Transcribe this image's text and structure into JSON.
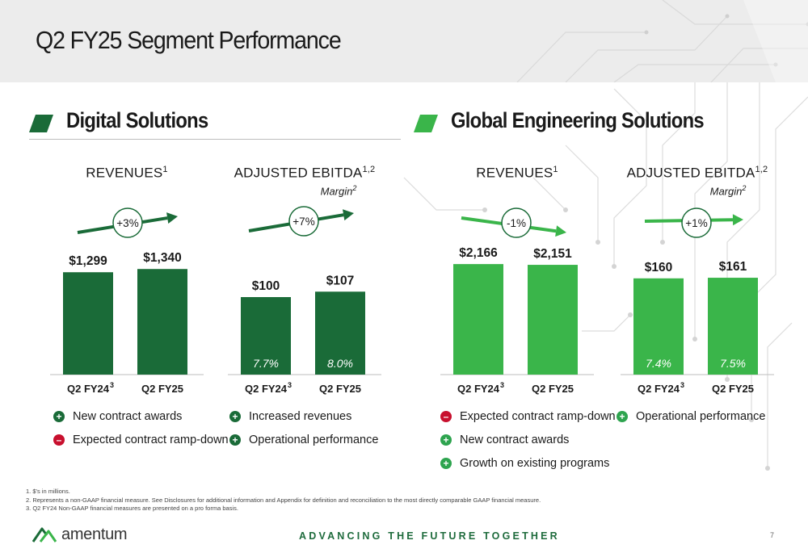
{
  "slide": {
    "title": "Q2 FY25 Segment Performance",
    "page_number": "7",
    "tagline": "ADVANCING THE FUTURE TOGETHER",
    "logo_text": "amentum"
  },
  "colors": {
    "dark_green": "#1a6b38",
    "light_green": "#3ab54a",
    "negative_red": "#c8102e"
  },
  "sections": [
    {
      "title": "Digital Solutions",
      "factors_left": [
        {
          "sign": "+",
          "text": "New contract awards"
        },
        {
          "sign": "–",
          "text": "Expected contract ramp-down"
        }
      ],
      "factors_right": [
        {
          "sign": "+",
          "text": "Increased revenues"
        },
        {
          "sign": "+",
          "text": "Operational performance"
        }
      ]
    },
    {
      "title": "Global Engineering Solutions",
      "factors_left": [
        {
          "sign": "–",
          "text": "Expected contract ramp-down"
        },
        {
          "sign": "+",
          "text": "New contract awards"
        },
        {
          "sign": "+",
          "text": "Growth on existing programs"
        }
      ],
      "factors_right": [
        {
          "sign": "+",
          "text": "Operational performance"
        }
      ]
    }
  ],
  "chart_data": [
    {
      "type": "bar",
      "segment": "Digital Solutions",
      "heading": "REVENUES",
      "heading_sup": "1",
      "margin_label": "",
      "categories": [
        "Q2 FY24",
        "Q2 FY25"
      ],
      "category_sups": [
        "3",
        ""
      ],
      "values": [
        1299,
        1340
      ],
      "value_labels": [
        "$1,299",
        "$1,340"
      ],
      "margins": [],
      "change": "+3%",
      "color": "#1a6b38",
      "trend": "up"
    },
    {
      "type": "bar",
      "segment": "Digital Solutions",
      "heading": "ADJUSTED EBITDA",
      "heading_sup": "1,2",
      "margin_label": "Margin",
      "margin_sup": "2",
      "categories": [
        "Q2 FY24",
        "Q2 FY25"
      ],
      "category_sups": [
        "3",
        ""
      ],
      "values": [
        100,
        107
      ],
      "value_labels": [
        "$100",
        "$107"
      ],
      "margins": [
        "7.7%",
        "8.0%"
      ],
      "change": "+7%",
      "color": "#1a6b38",
      "trend": "up"
    },
    {
      "type": "bar",
      "segment": "Global Engineering Solutions",
      "heading": "REVENUES",
      "heading_sup": "1",
      "margin_label": "",
      "categories": [
        "Q2 FY24",
        "Q2 FY25"
      ],
      "category_sups": [
        "3",
        ""
      ],
      "values": [
        2166,
        2151
      ],
      "value_labels": [
        "$2,166",
        "$2,151"
      ],
      "margins": [],
      "change": "-1%",
      "color": "#3ab54a",
      "trend": "down"
    },
    {
      "type": "bar",
      "segment": "Global Engineering Solutions",
      "heading": "ADJUSTED EBITDA",
      "heading_sup": "1,2",
      "margin_label": "Margin",
      "margin_sup": "2",
      "categories": [
        "Q2 FY24",
        "Q2 FY25"
      ],
      "category_sups": [
        "3",
        ""
      ],
      "values": [
        160,
        161
      ],
      "value_labels": [
        "$160",
        "$161"
      ],
      "margins": [
        "7.4%",
        "7.5%"
      ],
      "change": "+1%",
      "color": "#3ab54a",
      "trend": "up"
    }
  ],
  "footnotes": [
    "1.  $'s in millions.",
    "2.  Represents a non-GAAP financial measure. See Disclosures for additional information and Appendix for definition and reconciliation to the most directly comparable GAAP financial measure.",
    "3.  Q2 FY24 Non-GAAP financial measures are presented on a pro forma basis."
  ]
}
